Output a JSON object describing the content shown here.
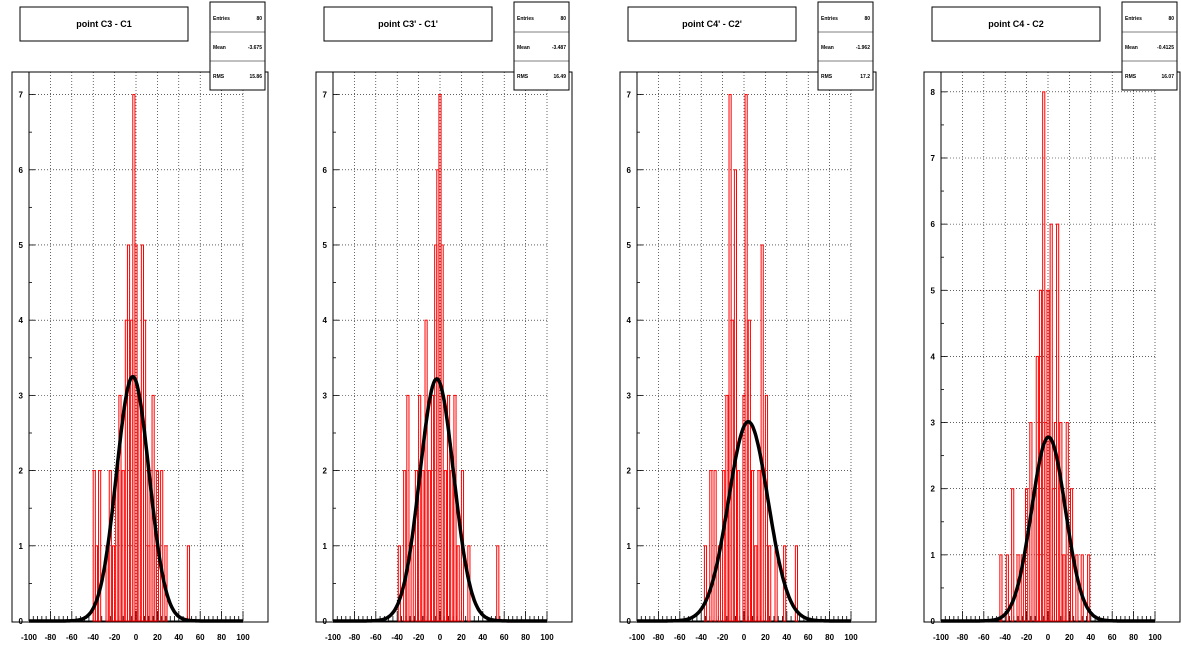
{
  "chart_data": [
    {
      "type": "histogram",
      "title": "point C3 - C1",
      "stats": {
        "entries_label": "Entries",
        "entries": "80",
        "mean_label": "Mean",
        "mean": "-3.675",
        "rms_label": "RMS",
        "rms": "15.86"
      },
      "xlim": [
        -100,
        100
      ],
      "ylim": [
        0,
        7.3
      ],
      "xticks": [
        "-100",
        "-80",
        "-60",
        "-40",
        "-20",
        "0",
        "20",
        "40",
        "60",
        "80",
        "100"
      ],
      "yticks": [
        "0",
        "1",
        "2",
        "3",
        "4",
        "5",
        "6",
        "7"
      ],
      "grid": true,
      "hist_color": "#ff0000",
      "fit_color": "#000000",
      "bins": [
        {
          "x": -39,
          "y": 2
        },
        {
          "x": -37,
          "y": 1
        },
        {
          "x": -34,
          "y": 2
        },
        {
          "x": -27,
          "y": 1
        },
        {
          "x": -24,
          "y": 2
        },
        {
          "x": -21,
          "y": 1
        },
        {
          "x": -18,
          "y": 2
        },
        {
          "x": -15,
          "y": 3
        },
        {
          "x": -12,
          "y": 2
        },
        {
          "x": -9,
          "y": 4
        },
        {
          "x": -7,
          "y": 5
        },
        {
          "x": -4,
          "y": 4
        },
        {
          "x": -2,
          "y": 7
        },
        {
          "x": 0,
          "y": 5
        },
        {
          "x": 3,
          "y": 3
        },
        {
          "x": 6,
          "y": 5
        },
        {
          "x": 8,
          "y": 4
        },
        {
          "x": 10,
          "y": 2
        },
        {
          "x": 12,
          "y": 1
        },
        {
          "x": 14,
          "y": 2
        },
        {
          "x": 16,
          "y": 3
        },
        {
          "x": 18,
          "y": 1
        },
        {
          "x": 20,
          "y": 2
        },
        {
          "x": 24,
          "y": 2
        },
        {
          "x": 28,
          "y": 1
        },
        {
          "x": 49,
          "y": 1
        }
      ],
      "fit": {
        "const": 3.25,
        "mean": -3.0,
        "sigma": 15.2
      }
    },
    {
      "type": "histogram",
      "title": "point C3' - C1'",
      "stats": {
        "entries_label": "Entries",
        "entries": "80",
        "mean_label": "Mean",
        "mean": "-3.487",
        "rms_label": "RMS",
        "rms": "16.49"
      },
      "xlim": [
        -100,
        100
      ],
      "ylim": [
        0,
        7.3
      ],
      "xticks": [
        "-100",
        "-80",
        "-60",
        "-40",
        "-20",
        "0",
        "20",
        "40",
        "60",
        "80",
        "100"
      ],
      "yticks": [
        "0",
        "1",
        "2",
        "3",
        "4",
        "5",
        "6",
        "7"
      ],
      "grid": true,
      "hist_color": "#ff0000",
      "fit_color": "#000000",
      "bins": [
        {
          "x": -38,
          "y": 1
        },
        {
          "x": -33,
          "y": 2
        },
        {
          "x": -30,
          "y": 3
        },
        {
          "x": -26,
          "y": 1
        },
        {
          "x": -22,
          "y": 2
        },
        {
          "x": -19,
          "y": 3
        },
        {
          "x": -16,
          "y": 2
        },
        {
          "x": -13,
          "y": 4
        },
        {
          "x": -10,
          "y": 2
        },
        {
          "x": -7,
          "y": 3
        },
        {
          "x": -4,
          "y": 5
        },
        {
          "x": -2,
          "y": 6
        },
        {
          "x": 0,
          "y": 7
        },
        {
          "x": 2,
          "y": 5
        },
        {
          "x": 5,
          "y": 2
        },
        {
          "x": 8,
          "y": 3
        },
        {
          "x": 11,
          "y": 2
        },
        {
          "x": 14,
          "y": 3
        },
        {
          "x": 17,
          "y": 1
        },
        {
          "x": 21,
          "y": 2
        },
        {
          "x": 27,
          "y": 1
        },
        {
          "x": 54,
          "y": 1
        }
      ],
      "fit": {
        "const": 3.22,
        "mean": -3.0,
        "sigma": 15.8
      }
    },
    {
      "type": "histogram",
      "title": "point C4' - C2'",
      "stats": {
        "entries_label": "Entries",
        "entries": "80",
        "mean_label": "Mean",
        "mean": "-1.962",
        "rms_label": "RMS",
        "rms": "17.2"
      },
      "xlim": [
        -100,
        100
      ],
      "ylim": [
        0,
        7.3
      ],
      "xticks": [
        "-100",
        "-80",
        "-60",
        "-40",
        "-20",
        "0",
        "20",
        "40",
        "60",
        "80",
        "100"
      ],
      "yticks": [
        "0",
        "1",
        "2",
        "3",
        "4",
        "5",
        "6",
        "7"
      ],
      "grid": true,
      "hist_color": "#ff0000",
      "fit_color": "#000000",
      "bins": [
        {
          "x": -36,
          "y": 1
        },
        {
          "x": -31,
          "y": 2
        },
        {
          "x": -27,
          "y": 2
        },
        {
          "x": -23,
          "y": 1
        },
        {
          "x": -19,
          "y": 2
        },
        {
          "x": -16,
          "y": 3
        },
        {
          "x": -13,
          "y": 7
        },
        {
          "x": -11,
          "y": 4
        },
        {
          "x": -8,
          "y": 6
        },
        {
          "x": -5,
          "y": 2
        },
        {
          "x": 0,
          "y": 3
        },
        {
          "x": 2,
          "y": 7
        },
        {
          "x": 5,
          "y": 4
        },
        {
          "x": 8,
          "y": 2
        },
        {
          "x": 11,
          "y": 1
        },
        {
          "x": 14,
          "y": 2
        },
        {
          "x": 17,
          "y": 5
        },
        {
          "x": 21,
          "y": 3
        },
        {
          "x": 24,
          "y": 1
        },
        {
          "x": 30,
          "y": 1
        },
        {
          "x": 38,
          "y": 1
        },
        {
          "x": 49,
          "y": 1
        }
      ],
      "fit": {
        "const": 2.65,
        "mean": 4.0,
        "sigma": 18.5
      }
    },
    {
      "type": "histogram",
      "title": "point C4 - C2",
      "stats": {
        "entries_label": "Entries",
        "entries": "80",
        "mean_label": "Mean",
        "mean": "-0.4125",
        "rms_label": "RMS",
        "rms": "16.07"
      },
      "xlim": [
        -100,
        100
      ],
      "ylim": [
        0,
        8.3
      ],
      "xticks": [
        "-100",
        "-80",
        "-60",
        "-40",
        "-20",
        "0",
        "20",
        "40",
        "60",
        "80",
        "100"
      ],
      "yticks": [
        "0",
        "1",
        "2",
        "3",
        "4",
        "5",
        "6",
        "7",
        "8"
      ],
      "grid": true,
      "hist_color": "#ff0000",
      "fit_color": "#000000",
      "bins": [
        {
          "x": -44,
          "y": 1
        },
        {
          "x": -38,
          "y": 1
        },
        {
          "x": -33,
          "y": 2
        },
        {
          "x": -28,
          "y": 1
        },
        {
          "x": -24,
          "y": 1
        },
        {
          "x": -20,
          "y": 2
        },
        {
          "x": -16,
          "y": 3
        },
        {
          "x": -12,
          "y": 2
        },
        {
          "x": -10,
          "y": 4
        },
        {
          "x": -7,
          "y": 5
        },
        {
          "x": -4,
          "y": 8
        },
        {
          "x": -2,
          "y": 3
        },
        {
          "x": 0,
          "y": 5
        },
        {
          "x": 3,
          "y": 6
        },
        {
          "x": 5,
          "y": 2
        },
        {
          "x": 7,
          "y": 3
        },
        {
          "x": 9,
          "y": 6
        },
        {
          "x": 12,
          "y": 3
        },
        {
          "x": 15,
          "y": 1
        },
        {
          "x": 18,
          "y": 3
        },
        {
          "x": 22,
          "y": 2
        },
        {
          "x": 27,
          "y": 1
        },
        {
          "x": 32,
          "y": 1
        },
        {
          "x": 38,
          "y": 1
        }
      ],
      "fit": {
        "const": 2.78,
        "mean": 0.5,
        "sigma": 15.8
      }
    }
  ]
}
